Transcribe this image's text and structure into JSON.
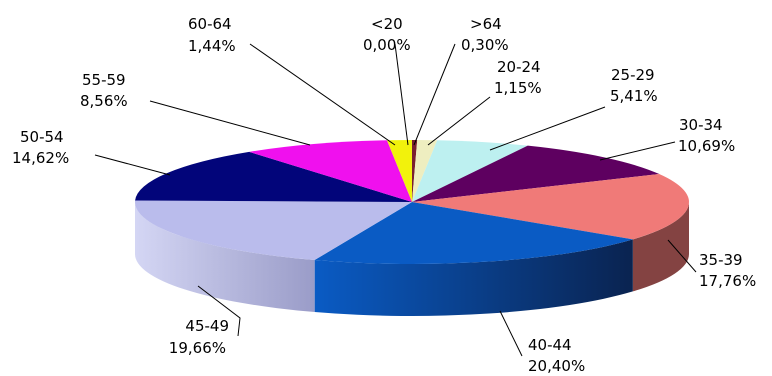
{
  "chart_data": {
    "type": "pie",
    "title": "",
    "three_d": true,
    "legend": "none",
    "slices": [
      {
        "category": "<20",
        "value": 0.0,
        "label": "0,00%",
        "color": "#dcdc5a"
      },
      {
        "category": ">64",
        "value": 0.3,
        "label": "0,30%",
        "color": "#7a1f2f"
      },
      {
        "category": "20-24",
        "value": 1.15,
        "label": "1,15%",
        "color": "#eeeec0"
      },
      {
        "category": "25-29",
        "value": 5.41,
        "label": "5,41%",
        "color": "#bdf0f0"
      },
      {
        "category": "30-34",
        "value": 10.69,
        "label": "10,69%",
        "color": "#5e0060"
      },
      {
        "category": "35-39",
        "value": 17.76,
        "label": "17,76%",
        "color": "#f07a78"
      },
      {
        "category": "40-44",
        "value": 20.4,
        "label": "20,40%",
        "color": "#0a5bc4"
      },
      {
        "category": "45-49",
        "value": 19.66,
        "label": "19,66%",
        "color": "#babcec"
      },
      {
        "category": "50-54",
        "value": 14.62,
        "label": "14,62%",
        "color": "#02057a"
      },
      {
        "category": "55-59",
        "value": 8.56,
        "label": "8,56%",
        "color": "#f010ee"
      },
      {
        "category": "60-64",
        "value": 1.44,
        "label": "1,44%",
        "color": "#f2f20c"
      }
    ]
  }
}
